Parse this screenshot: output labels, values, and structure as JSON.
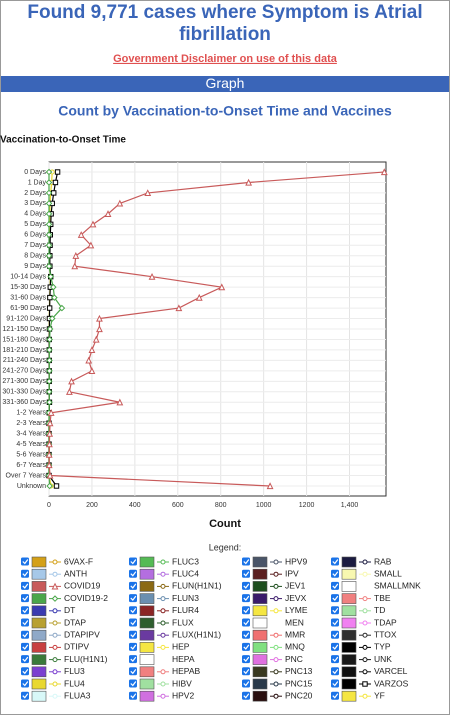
{
  "header": {
    "title_line1": "Found 9,771 cases where Symptom is Atrial",
    "title_line2": "fibrillation",
    "disclaimer": "Government Disclaimer on use of this data",
    "section": "Graph"
  },
  "chart_data": {
    "type": "line",
    "title": "Count by Vaccination-to-Onset Time and Vaccines",
    "y_label": "Vaccination-to-Onset Time",
    "x_label": "Count",
    "legend_title": "Legend:",
    "grid": true,
    "categories": [
      "0 Days",
      "1 Day",
      "2 Days",
      "3 Days",
      "4 Days",
      "5 Days",
      "6 Days",
      "7 Days",
      "8 Days",
      "9 Days",
      "10-14 Days",
      "15-30 Days",
      "31-60 Days",
      "61-90 Days",
      "91-120 Days",
      "121-150 Days",
      "151-180 Days",
      "181-210 Days",
      "211-240 Days",
      "241-270 Days",
      "271-300 Days",
      "301-330 Days",
      "331-360 Days",
      "1-2 Years",
      "2-3 Years",
      "3-4 Years",
      "4-5 Years",
      "5-6 Years",
      "6-7 Years",
      "Over 7 Years",
      "Unknown"
    ],
    "xlim": [
      0,
      1570
    ],
    "xticks": [
      0,
      200,
      400,
      600,
      800,
      1000,
      1200,
      {
        "value": 1400,
        "label": "1,400"
      }
    ],
    "series": [
      {
        "name": "6VAX-F",
        "color": "#d4a017"
      },
      {
        "name": "ANTH",
        "color": "#a6c8e8"
      },
      {
        "name": "COVID19",
        "color": "#c85a5a",
        "marker": "triangle",
        "values": [
          1562,
          930,
          460,
          330,
          275,
          205,
          150,
          195,
          125,
          120,
          480,
          805,
          700,
          605,
          235,
          235,
          220,
          200,
          185,
          200,
          105,
          95,
          330,
          10,
          5,
          3,
          2,
          1,
          1,
          5,
          1030
        ]
      },
      {
        "name": "COVID19-2",
        "color": "#4aa64a",
        "marker": "diamond",
        "values": [
          0,
          0,
          0,
          0,
          0,
          0,
          0,
          0,
          0,
          0,
          8,
          20,
          25,
          60,
          15,
          5,
          3,
          2,
          2,
          2,
          1,
          1,
          2,
          0,
          0,
          0,
          0,
          0,
          0,
          0,
          3
        ]
      },
      {
        "name": "DT",
        "color": "#3a3ab0"
      },
      {
        "name": "DTAP",
        "color": "#b8a030"
      },
      {
        "name": "DTAPIPV",
        "color": "#8fa9c8"
      },
      {
        "name": "DTIPV",
        "color": "#c84040"
      },
      {
        "name": "FLU(H1N1)",
        "color": "#3a7a3a"
      },
      {
        "name": "FLU3",
        "color": "#7b3fd0"
      },
      {
        "name": "FLU4",
        "color": "#e8d830",
        "marker": "circle",
        "values": [
          15,
          12,
          8,
          5,
          4,
          3,
          2,
          2,
          2,
          2,
          6,
          5,
          3,
          2,
          1,
          1,
          1,
          1,
          1,
          1,
          1,
          1,
          1,
          0,
          0,
          0,
          0,
          0,
          0,
          0,
          10
        ]
      },
      {
        "name": "FLUA3",
        "color": "#d8f8f8"
      },
      {
        "name": "FLUC3",
        "color": "#55bb55"
      },
      {
        "name": "FLUC4",
        "color": "#b46ee0"
      },
      {
        "name": "FLUN(H1N1)",
        "color": "#8b6914"
      },
      {
        "name": "FLUN3",
        "color": "#6b8fb0"
      },
      {
        "name": "FLUR4",
        "color": "#8b2525"
      },
      {
        "name": "FLUX",
        "color": "#2e5e2e"
      },
      {
        "name": "FLUX(H1N1)",
        "color": "#6a3aa0"
      },
      {
        "name": "HEP",
        "color": "#f5e642"
      },
      {
        "name": "HEPA",
        "color": "#ffffff"
      },
      {
        "name": "HEPAB",
        "color": "#f08080"
      },
      {
        "name": "HIBV",
        "color": "#a0e0a0"
      },
      {
        "name": "HPV2",
        "color": "#d070e0"
      },
      {
        "name": "HPV9",
        "color": "#4a5568"
      },
      {
        "name": "IPV",
        "color": "#5a2020"
      },
      {
        "name": "JEV1",
        "color": "#1f4f1f"
      },
      {
        "name": "JEVX",
        "color": "#3a1a6a"
      },
      {
        "name": "LYME",
        "color": "#f5e642"
      },
      {
        "name": "MEN",
        "color": "#ffffff"
      },
      {
        "name": "MMR",
        "color": "#f07070"
      },
      {
        "name": "MNQ",
        "color": "#80e080"
      },
      {
        "name": "PNC",
        "color": "#e070e0"
      },
      {
        "name": "PNC13",
        "color": "#3a3a20"
      },
      {
        "name": "PNC15",
        "color": "#2a3a4a"
      },
      {
        "name": "PNC20",
        "color": "#2a1010"
      },
      {
        "name": "RAB",
        "color": "#1a1a40"
      },
      {
        "name": "SMALL",
        "color": "#f8f8b0"
      },
      {
        "name": "SMALLMNK",
        "color": "#ffffff"
      },
      {
        "name": "TBE",
        "color": "#f08080"
      },
      {
        "name": "TD",
        "color": "#a0e0a0"
      },
      {
        "name": "TDAP",
        "color": "#f080f0"
      },
      {
        "name": "TTOX",
        "color": "#303030"
      },
      {
        "name": "TYP",
        "color": "#000000"
      },
      {
        "name": "UNK",
        "color": "#1a1a1a"
      },
      {
        "name": "VARCEL",
        "color": "#101010"
      },
      {
        "name": "VARZOS",
        "color": "#000000",
        "marker": "square",
        "values": [
          40,
          30,
          22,
          15,
          10,
          8,
          6,
          5,
          4,
          4,
          8,
          6,
          4,
          3,
          2,
          2,
          1,
          1,
          1,
          1,
          1,
          1,
          2,
          1,
          0,
          0,
          0,
          0,
          0,
          0,
          35
        ]
      },
      {
        "name": "YF",
        "color": "#f5e642"
      }
    ]
  }
}
